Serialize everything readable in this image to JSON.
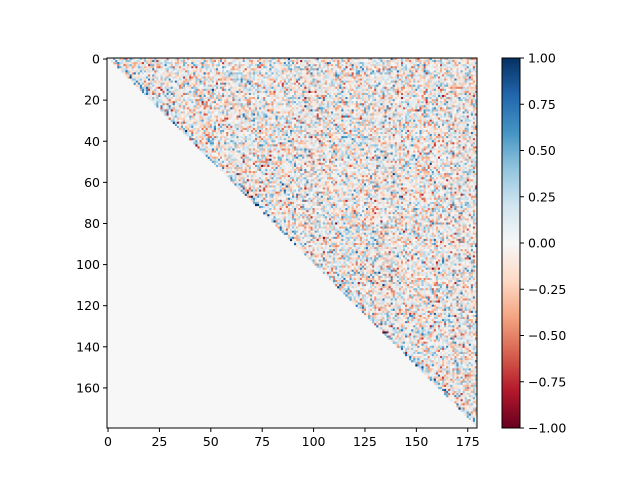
{
  "chart_data": {
    "type": "heatmap",
    "title": "",
    "xlabel": "",
    "ylabel": "",
    "matrix_size": 180,
    "lower_triangle_value": 0.0,
    "diagonal_visible": true,
    "x_ticks": [
      0,
      25,
      50,
      75,
      100,
      125,
      150,
      175
    ],
    "x_tick_labels": [
      "0",
      "25",
      "50",
      "75",
      "100",
      "125",
      "150",
      "175"
    ],
    "y_ticks": [
      0,
      20,
      40,
      60,
      80,
      100,
      120,
      140,
      160
    ],
    "y_tick_labels": [
      "0",
      "20",
      "40",
      "60",
      "80",
      "100",
      "120",
      "140",
      "160"
    ],
    "colorbar": {
      "colormap": "RdBu",
      "range": [
        -1.0,
        1.0
      ],
      "ticks": [
        1.0,
        0.75,
        0.5,
        0.25,
        0.0,
        -0.25,
        -0.5,
        -0.75,
        -1.0
      ],
      "tick_labels": [
        "1.00",
        "0.75",
        "0.50",
        "0.25",
        "0.00",
        "−0.25",
        "−0.50",
        "−0.75",
        "−1.00"
      ],
      "stops": [
        "#67001f",
        "#b2182b",
        "#d6604d",
        "#f4a582",
        "#fddbc7",
        "#f7f7f7",
        "#d1e5f0",
        "#92c5de",
        "#4393c3",
        "#2166ac",
        "#053061"
      ]
    },
    "upper_triangle_note_values_sampled": "dense correlation-like values in [-1, 1], mostly within [-0.5, 0.6]"
  }
}
